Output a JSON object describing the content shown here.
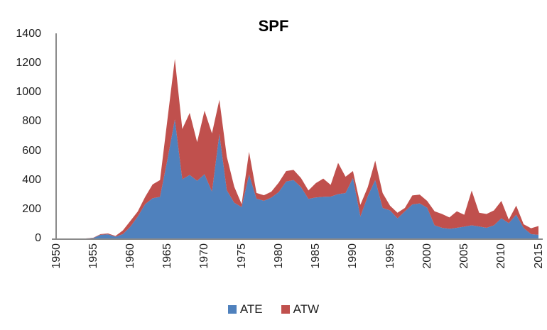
{
  "colors": {
    "background": "#FFFFFF",
    "axis_line": "#8A8A8A",
    "tick_label_text": "#1F1F1F",
    "title_text": "#000000"
  },
  "chart_data": {
    "type": "area",
    "stacked": true,
    "title": "SPF",
    "xlabel": "",
    "ylabel": "",
    "grid": false,
    "legend_position": "bottom",
    "ylim": [
      0,
      1400
    ],
    "y_ticks": [
      0,
      200,
      400,
      600,
      800,
      1000,
      1200,
      1400
    ],
    "x_tick_labels": [
      "1950",
      "1955",
      "1960",
      "1965",
      "1970",
      "1975",
      "1980",
      "1985",
      "1990",
      "1995",
      "2000",
      "2005",
      "2010",
      "2015"
    ],
    "x": [
      1950,
      1951,
      1952,
      1953,
      1954,
      1955,
      1956,
      1957,
      1958,
      1959,
      1960,
      1961,
      1962,
      1963,
      1964,
      1965,
      1966,
      1967,
      1968,
      1969,
      1970,
      1971,
      1972,
      1973,
      1974,
      1975,
      1976,
      1977,
      1978,
      1979,
      1980,
      1981,
      1982,
      1983,
      1984,
      1985,
      1986,
      1987,
      1988,
      1989,
      1990,
      1991,
      1992,
      1993,
      1994,
      1995,
      1996,
      1997,
      1998,
      1999,
      2000,
      2001,
      2002,
      2003,
      2004,
      2005,
      2006,
      2007,
      2008,
      2009,
      2010,
      2011,
      2012,
      2013,
      2014,
      2015
    ],
    "series": [
      {
        "name": "ATE",
        "color": "#4F81BD",
        "values": [
          0,
          0,
          0,
          0,
          0,
          3,
          25,
          28,
          12,
          30,
          80,
          150,
          235,
          275,
          285,
          540,
          815,
          405,
          435,
          395,
          440,
          320,
          715,
          330,
          245,
          215,
          438,
          272,
          258,
          280,
          318,
          390,
          400,
          352,
          271,
          281,
          285,
          287,
          304,
          311,
          414,
          150,
          290,
          400,
          209,
          192,
          138,
          186,
          233,
          240,
          210,
          90,
          73,
          66,
          73,
          81,
          90,
          82,
          73,
          90,
          138,
          105,
          162,
          72,
          30,
          25
        ]
      },
      {
        "name": "ATW",
        "color": "#C0504D",
        "values": [
          0,
          0,
          0,
          0,
          0,
          2,
          5,
          6,
          5,
          25,
          40,
          35,
          50,
          95,
          115,
          275,
          415,
          345,
          425,
          265,
          435,
          400,
          235,
          230,
          110,
          20,
          155,
          40,
          38,
          40,
          65,
          72,
          70,
          62,
          58,
          98,
          125,
          80,
          214,
          112,
          48,
          80,
          62,
          133,
          102,
          32,
          38,
          23,
          62,
          60,
          47,
          96,
          95,
          78,
          113,
          81,
          238,
          94,
          95,
          102,
          119,
          24,
          63,
          25,
          40,
          60
        ]
      }
    ]
  }
}
